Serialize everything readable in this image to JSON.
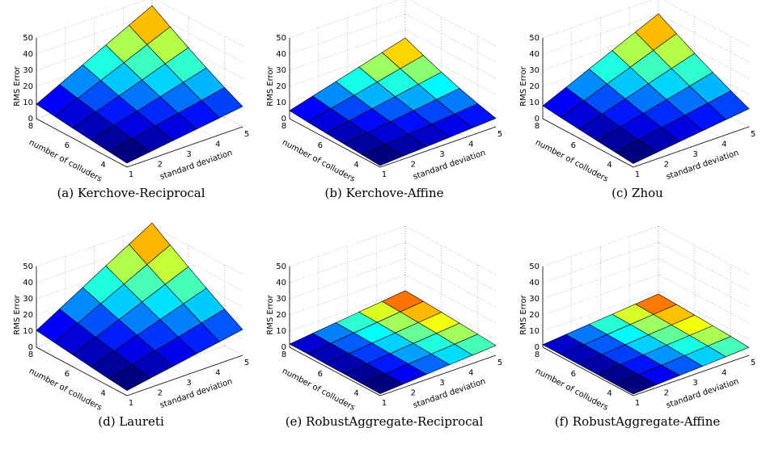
{
  "chart_data": [
    {
      "type": "surface",
      "caption": "(a) Kerchove-Reciprocal",
      "xlabel": "standard deviation",
      "ylabel": "number of colluders",
      "zlabel": "RMS Error",
      "colormap": "jet",
      "grid": true,
      "x": [
        1,
        1.8,
        2.6,
        3.4,
        4.2,
        5
      ],
      "y": [
        3,
        4,
        5,
        6,
        7,
        8
      ],
      "z": [
        [
          2.5,
          4.5,
          6.5,
          8.5,
          10.5,
          12.6
        ],
        [
          3.7,
          6.6,
          9.5,
          12.4,
          15.3,
          18.3
        ],
        [
          4.9,
          8.8,
          12.7,
          16.6,
          20.5,
          24.5
        ],
        [
          6.2,
          11.1,
          16.1,
          21.0,
          26.0,
          31.0
        ],
        [
          7.6,
          13.6,
          19.7,
          25.7,
          31.8,
          37.9
        ],
        [
          9,
          16.2,
          23.4,
          30.6,
          37.8,
          45
        ]
      ],
      "xlim": [
        1,
        5
      ],
      "ylim": [
        3,
        8
      ],
      "zlim": [
        0,
        50
      ],
      "xticks": [
        1,
        2,
        3,
        4,
        5
      ],
      "yticks": [
        4,
        6,
        8
      ],
      "zticks": [
        0,
        10,
        20,
        30,
        40,
        50
      ]
    },
    {
      "type": "surface",
      "caption": "(b) Kerchove-Affine",
      "xlabel": "standard deviation",
      "ylabel": "number of colluders",
      "zlabel": "RMS Error",
      "colormap": "jet",
      "grid": true,
      "x": [
        1,
        1.8,
        2.6,
        3.4,
        4.2,
        5
      ],
      "y": [
        3,
        4,
        5,
        6,
        7,
        8
      ],
      "z": [
        [
          1.0,
          1.9,
          2.7,
          3.5,
          4.4,
          5.2
        ],
        [
          1.7,
          3.0,
          4.3,
          5.6,
          6.9,
          8.3
        ],
        [
          2.4,
          4.2,
          6.1,
          8.0,
          9.9,
          11.8
        ],
        [
          3.2,
          5.7,
          8.2,
          10.7,
          13.3,
          15.8
        ],
        [
          4.0,
          7.3,
          10.5,
          13.7,
          17.0,
          20.2
        ],
        [
          5,
          9,
          13,
          17,
          21,
          25
        ]
      ],
      "xlim": [
        1,
        5
      ],
      "ylim": [
        3,
        8
      ],
      "zlim": [
        0,
        50
      ],
      "xticks": [
        1,
        2,
        3,
        4,
        5
      ],
      "yticks": [
        4,
        6,
        8
      ],
      "zticks": [
        0,
        10,
        20,
        30,
        40,
        50
      ]
    },
    {
      "type": "surface",
      "caption": "(c) Zhou",
      "xlabel": "standard deviation",
      "ylabel": "number of colluders",
      "zlabel": "RMS Error",
      "colormap": "jet",
      "grid": true,
      "x": [
        1,
        1.8,
        2.6,
        3.4,
        4.2,
        5
      ],
      "y": [
        3,
        4,
        5,
        6,
        7,
        8
      ],
      "z": [
        [
          2.2,
          4.0,
          5.8,
          7.6,
          9.4,
          11.2
        ],
        [
          3.3,
          5.9,
          8.5,
          11.1,
          13.7,
          16.3
        ],
        [
          4.3,
          7.8,
          11.3,
          14.8,
          18.2,
          21.7
        ],
        [
          5.5,
          9.9,
          14.3,
          18.7,
          23.1,
          27.5
        ],
        [
          6.7,
          12.1,
          17.5,
          22.9,
          28.3,
          33.7
        ],
        [
          8,
          14.4,
          20.8,
          27.2,
          33.6,
          40
        ]
      ],
      "xlim": [
        1,
        5
      ],
      "ylim": [
        3,
        8
      ],
      "zlim": [
        0,
        50
      ],
      "xticks": [
        1,
        2,
        3,
        4,
        5
      ],
      "yticks": [
        4,
        6,
        8
      ],
      "zticks": [
        0,
        10,
        20,
        30,
        40,
        50
      ]
    },
    {
      "type": "surface",
      "caption": "(d) Laureti",
      "xlabel": "standard deviation",
      "ylabel": "number of colluders",
      "zlabel": "RMS Error",
      "colormap": "jet",
      "grid": true,
      "x": [
        1,
        1.8,
        2.6,
        3.4,
        4.2,
        5
      ],
      "y": [
        3,
        4,
        5,
        6,
        7,
        8
      ],
      "z": [
        [
          3.2,
          5.8,
          8.3,
          10.9,
          13.4,
          16.0
        ],
        [
          4.5,
          8.1,
          11.8,
          15.4,
          19.0,
          22.6
        ],
        [
          5.9,
          10.7,
          15.4,
          20.1,
          24.9,
          29.6
        ],
        [
          7.4,
          13.2,
          19.1,
          25.0,
          30.9,
          36.8
        ],
        [
          8.9,
          15.9,
          23.0,
          30.1,
          37.2,
          44.3
        ],
        [
          10.4,
          18.7,
          27.0,
          35.4,
          43.7,
          52
        ]
      ],
      "xlim": [
        1,
        5
      ],
      "ylim": [
        3,
        8
      ],
      "zlim": [
        0,
        50
      ],
      "xticks": [
        1,
        2,
        3,
        4,
        5
      ],
      "yticks": [
        4,
        6,
        8
      ],
      "zticks": [
        0,
        10,
        20,
        30,
        40,
        50
      ]
    },
    {
      "type": "surface",
      "caption": "(e) RobustAggregate-Reciprocal",
      "xlabel": "standard deviation",
      "ylabel": "number of colluders",
      "zlabel": "RMS Error",
      "colormap": "jet",
      "grid": true,
      "x": [
        1,
        1.8,
        2.6,
        3.4,
        4.2,
        5
      ],
      "y": [
        3,
        4,
        5,
        6,
        7,
        8
      ],
      "z": [
        [
          1.2,
          2.2,
          3.2,
          4.2,
          5.1,
          6.1
        ],
        [
          1.4,
          2.5,
          3.7,
          4.8,
          5.9,
          7.1
        ],
        [
          1.6,
          2.8,
          4.1,
          5.4,
          6.6,
          7.9
        ],
        [
          1.7,
          3.1,
          4.5,
          5.9,
          7.3,
          8.7
        ],
        [
          1.9,
          3.4,
          4.9,
          6.4,
          7.9,
          9.4
        ],
        [
          2,
          3.6,
          5.2,
          6.8,
          8.4,
          10
        ]
      ],
      "xlim": [
        1,
        5
      ],
      "ylim": [
        3,
        8
      ],
      "zlim": [
        0,
        50
      ],
      "xticks": [
        1,
        2,
        3,
        4,
        5
      ],
      "yticks": [
        4,
        6,
        8
      ],
      "zticks": [
        0,
        10,
        20,
        30,
        40,
        50
      ]
    },
    {
      "type": "surface",
      "caption": "(f) RobustAggregate-Affine",
      "xlabel": "standard deviation",
      "ylabel": "number of colluders",
      "zlabel": "RMS Error",
      "colormap": "jet",
      "grid": true,
      "x": [
        1,
        1.8,
        2.6,
        3.4,
        4.2,
        5
      ],
      "y": [
        3,
        4,
        5,
        6,
        7,
        8
      ],
      "z": [
        [
          1.0,
          1.8,
          2.5,
          3.3,
          4.1,
          4.9
        ],
        [
          1.1,
          2.0,
          2.9,
          3.8,
          4.8,
          5.7
        ],
        [
          1.3,
          2.3,
          3.3,
          4.3,
          5.3,
          6.3
        ],
        [
          1.4,
          2.5,
          3.6,
          4.7,
          5.8,
          6.9
        ],
        [
          1.5,
          2.7,
          3.9,
          5.1,
          6.3,
          7.5
        ],
        [
          1.6,
          2.9,
          4.2,
          5.4,
          6.7,
          8
        ]
      ],
      "xlim": [
        1,
        5
      ],
      "ylim": [
        3,
        8
      ],
      "zlim": [
        0,
        50
      ],
      "xticks": [
        1,
        2,
        3,
        4,
        5
      ],
      "yticks": [
        4,
        6,
        8
      ],
      "zticks": [
        0,
        10,
        20,
        30,
        40,
        50
      ]
    }
  ]
}
